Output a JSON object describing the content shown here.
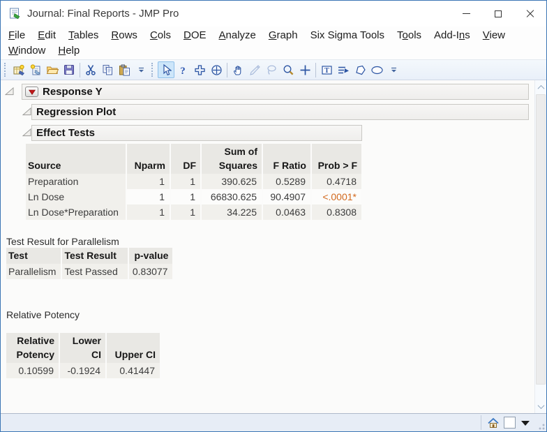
{
  "window": {
    "title": "Journal: Final Reports - JMP Pro",
    "controls": [
      {
        "name": "minimize-button",
        "icon": "minimize-icon"
      },
      {
        "name": "maximize-button",
        "icon": "maximize-icon"
      },
      {
        "name": "close-button",
        "icon": "close-icon"
      }
    ]
  },
  "menu": {
    "rows": [
      [
        {
          "label": "File",
          "u": 0
        },
        {
          "label": "Edit",
          "u": 0
        },
        {
          "label": "Tables",
          "u": 0
        },
        {
          "label": "Rows",
          "u": 0
        },
        {
          "label": "Cols",
          "u": 0
        },
        {
          "label": "DOE",
          "u": 0
        },
        {
          "label": "Analyze",
          "u": 0
        },
        {
          "label": "Graph",
          "u": 0
        },
        {
          "label": "Six Sigma Tools",
          "u": -1
        },
        {
          "label": "Tools",
          "u": 1
        },
        {
          "label": "Add-Ins",
          "u": 5
        },
        {
          "label": "View",
          "u": 0
        }
      ],
      [
        {
          "label": "Window",
          "u": 0
        },
        {
          "label": "Help",
          "u": 0
        }
      ]
    ]
  },
  "toolbar": {
    "groups": [
      {
        "items": [
          {
            "icon": "new-journal-icon"
          },
          {
            "icon": "new-window-icon"
          },
          {
            "icon": "open-file-icon"
          },
          {
            "icon": "save-icon"
          },
          {
            "sep": true
          },
          {
            "icon": "cut-icon"
          },
          {
            "icon": "copy-icon"
          },
          {
            "icon": "paste-icon"
          },
          {
            "icon": "overflow-chevron-icon"
          }
        ]
      },
      {
        "items": [
          {
            "icon": "arrow-tool-icon",
            "selected": true
          },
          {
            "icon": "help-tool-icon"
          },
          {
            "icon": "selection-tool-icon"
          },
          {
            "icon": "scroller-tool-icon"
          },
          {
            "sep": true
          },
          {
            "icon": "grabber-tool-icon"
          },
          {
            "icon": "brush-tool-icon",
            "disabled": true
          },
          {
            "icon": "lasso-tool-icon",
            "disabled": true
          },
          {
            "icon": "magnifier-tool-icon"
          },
          {
            "icon": "crosshair-tool-icon"
          },
          {
            "sep": true
          },
          {
            "icon": "annotate-tool-icon"
          },
          {
            "icon": "line-tool-icon"
          },
          {
            "icon": "polygon-tool-icon"
          },
          {
            "icon": "oval-tool-icon"
          },
          {
            "icon": "overflow-chevron-icon"
          }
        ]
      }
    ]
  },
  "outline": {
    "items": [
      {
        "label": "Response Y",
        "has_red_triangle": true
      },
      {
        "label": "Regression Plot",
        "has_red_triangle": false
      },
      {
        "label": "Effect Tests",
        "has_red_triangle": false
      }
    ]
  },
  "tables": {
    "effect_tests": {
      "columns": [
        "Source",
        "Nparm",
        "DF",
        "Sum of\nSquares",
        "F Ratio",
        "Prob > F"
      ],
      "rows": [
        [
          "Preparation",
          "1",
          "1",
          "390.625",
          "0.5289",
          "0.4718"
        ],
        [
          "Ln Dose",
          "1",
          "1",
          "66830.625",
          "90.4907",
          "<.0001*"
        ],
        [
          "Ln Dose*Preparation",
          "1",
          "1",
          "34.225",
          "0.0463",
          "0.8308"
        ]
      ],
      "significant_cell": {
        "row": 1,
        "col": 5
      }
    },
    "parallelism": {
      "heading": "Test Result for Parallelism",
      "columns": [
        "Test",
        "Test Result",
        "p-value"
      ],
      "rows": [
        [
          "Parallelism",
          "Test Passed",
          "0.83077"
        ]
      ]
    },
    "relative_potency": {
      "heading": "Relative Potency",
      "columns": [
        "Relative\nPotency",
        "Lower CI",
        "Upper CI"
      ],
      "rows": [
        [
          "0.10599",
          "-0.1924",
          "0.41447"
        ]
      ]
    }
  },
  "colors": {
    "significant_value": "#d2691e",
    "window_border": "#3c76b5",
    "red_triangle": "#c01818"
  },
  "scrollbar": {
    "icons": [
      "chevron-up-icon",
      "chevron-down-icon"
    ]
  },
  "status_bar": {
    "icons": [
      "home-icon",
      "window-box-icon",
      "window-menu-triangle-icon",
      "resize-grip"
    ]
  }
}
